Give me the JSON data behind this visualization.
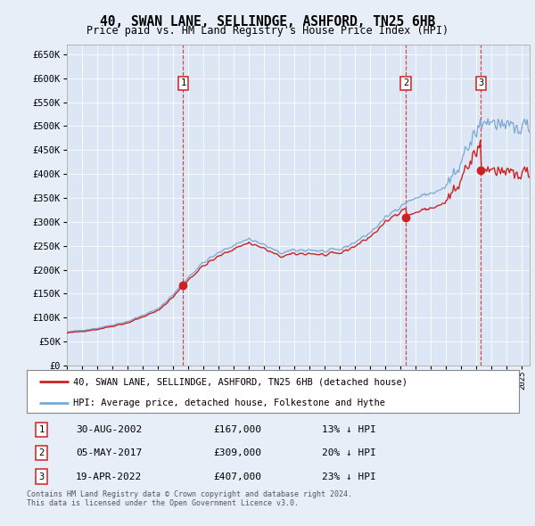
{
  "title": "40, SWAN LANE, SELLINDGE, ASHFORD, TN25 6HB",
  "subtitle": "Price paid vs. HM Land Registry's House Price Index (HPI)",
  "background_color": "#e8eef8",
  "plot_bg_color": "#dde6f5",
  "transactions": [
    {
      "date_num": 2002.66,
      "price": 167000,
      "label": "1"
    },
    {
      "date_num": 2017.34,
      "price": 309000,
      "label": "2"
    },
    {
      "date_num": 2022.29,
      "price": 407000,
      "label": "3"
    }
  ],
  "transaction_labels": [
    {
      "num": "1",
      "date": "30-AUG-2002",
      "price": "£167,000",
      "pct": "13% ↓ HPI"
    },
    {
      "num": "2",
      "date": "05-MAY-2017",
      "price": "£309,000",
      "pct": "20% ↓ HPI"
    },
    {
      "num": "3",
      "date": "19-APR-2022",
      "price": "£407,000",
      "pct": "23% ↓ HPI"
    }
  ],
  "hpi_color": "#7aa8d2",
  "price_color": "#cc2222",
  "vline_color": "#cc3333",
  "ylabel_ticks": [
    "£0",
    "£50K",
    "£100K",
    "£150K",
    "£200K",
    "£250K",
    "£300K",
    "£350K",
    "£400K",
    "£450K",
    "£500K",
    "£550K",
    "£600K",
    "£650K"
  ],
  "ytick_vals": [
    0,
    50000,
    100000,
    150000,
    200000,
    250000,
    300000,
    350000,
    400000,
    450000,
    500000,
    550000,
    600000,
    650000
  ],
  "xmin": 1995.0,
  "xmax": 2025.5,
  "ymin": 0,
  "ymax": 670000,
  "footer": "Contains HM Land Registry data © Crown copyright and database right 2024.\nThis data is licensed under the Open Government Licence v3.0.",
  "legend_property_label": "40, SWAN LANE, SELLINDGE, ASHFORD, TN25 6HB (detached house)",
  "legend_hpi_label": "HPI: Average price, detached house, Folkestone and Hythe"
}
